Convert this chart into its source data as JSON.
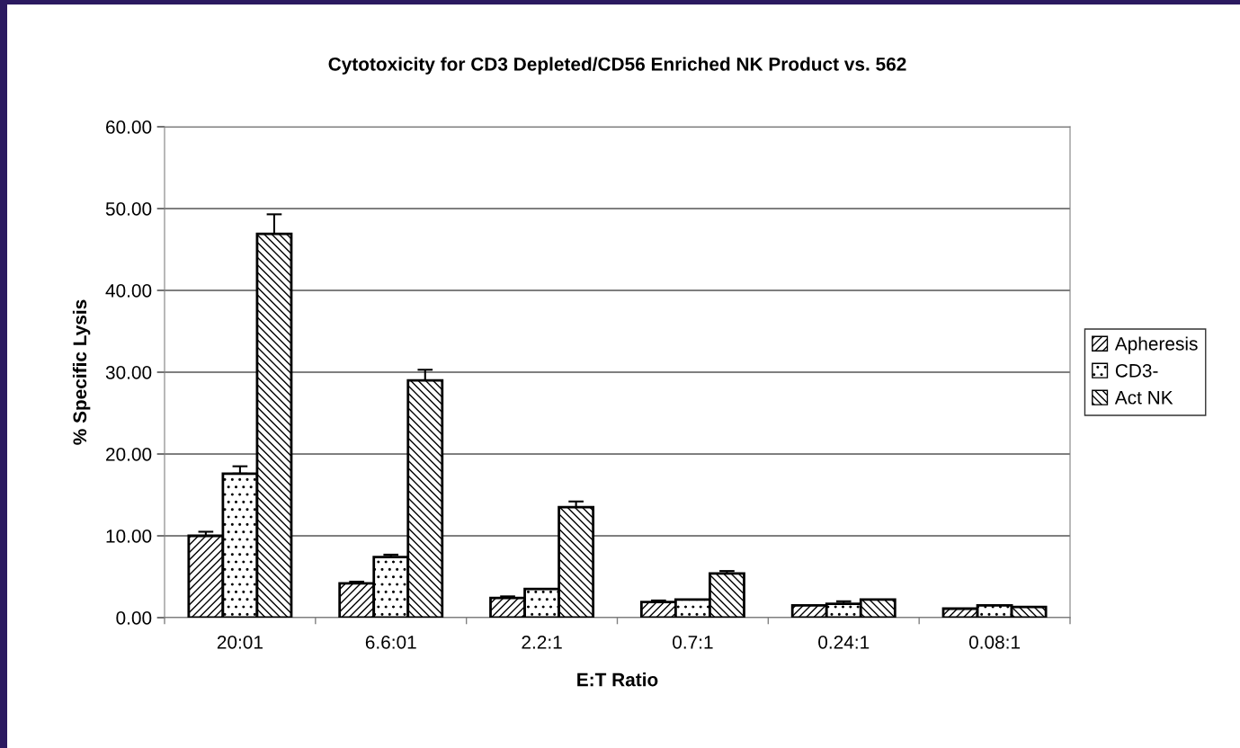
{
  "chart_data": {
    "type": "bar",
    "title": "Cytotoxicity for CD3 Depleted/CD56 Enriched NK Product vs. 562",
    "xlabel": "E:T Ratio",
    "ylabel": "% Specific Lysis",
    "categories": [
      "20:01",
      "6.6:01",
      "2.2:1",
      "0.7:1",
      "0.24:1",
      "0.08:1"
    ],
    "series": [
      {
        "name": "Apheresis",
        "color": "#000000",
        "values": [
          10.0,
          4.2,
          2.4,
          1.9,
          1.5,
          1.1
        ],
        "errors": [
          [
            10.0,
            10.5
          ],
          [
            4.2,
            4.4
          ],
          [
            2.4,
            2.6
          ],
          [
            1.9,
            2.1
          ],
          null,
          null
        ]
      },
      {
        "name": "CD3-",
        "color": "#000000",
        "values": [
          17.6,
          7.4,
          3.5,
          2.2,
          1.7,
          1.5
        ],
        "errors": [
          [
            17.6,
            18.5
          ],
          [
            7.4,
            7.7
          ],
          null,
          null,
          [
            1.7,
            2.0
          ],
          null
        ]
      },
      {
        "name": "Act NK",
        "color": "#000000",
        "values": [
          46.9,
          29.0,
          13.5,
          5.4,
          2.2,
          1.3
        ],
        "errors": [
          [
            46.9,
            49.3
          ],
          [
            29.0,
            30.3
          ],
          [
            13.5,
            14.2
          ],
          [
            5.4,
            5.7
          ],
          null,
          null
        ]
      }
    ],
    "ylim": [
      0,
      60
    ],
    "yticks": [
      {
        "value": 0,
        "label": "0.00"
      },
      {
        "value": 10,
        "label": "10.00"
      },
      {
        "value": 20,
        "label": "20.00"
      },
      {
        "value": 30,
        "label": "30.00"
      },
      {
        "value": 40,
        "label": "40.00"
      },
      {
        "value": 50,
        "label": "50.00"
      },
      {
        "value": 60,
        "label": "60.00"
      }
    ],
    "grid": "y",
    "legend": "right"
  }
}
